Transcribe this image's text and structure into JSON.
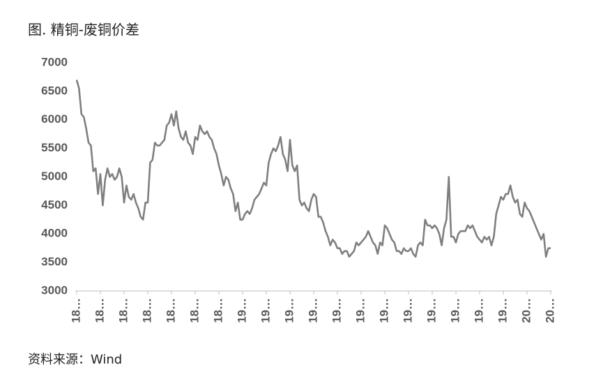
{
  "chart_data": {
    "type": "line",
    "title": "图. 精铜-废铜价差",
    "source": "资料来源：Wind",
    "color": "#7f7f7f",
    "categories": [
      "18…",
      null,
      null,
      null,
      null,
      null,
      null,
      null,
      null,
      null,
      "18…",
      null,
      null,
      null,
      null,
      null,
      null,
      null,
      null,
      null,
      "18…",
      null,
      null,
      null,
      null,
      null,
      null,
      null,
      null,
      null,
      "18…",
      null,
      null,
      null,
      null,
      null,
      null,
      null,
      null,
      null,
      "18…",
      null,
      null,
      null,
      null,
      null,
      null,
      null,
      null,
      null,
      "18…",
      null,
      null,
      null,
      null,
      null,
      null,
      null,
      null,
      null,
      "18…",
      null,
      null,
      null,
      null,
      null,
      null,
      null,
      null,
      null,
      "19…",
      null,
      null,
      null,
      null,
      null,
      null,
      null,
      null,
      null,
      "19…",
      null,
      null,
      null,
      null,
      null,
      null,
      null,
      null,
      null,
      "19…",
      null,
      null,
      null,
      null,
      null,
      null,
      null,
      null,
      null,
      "19…",
      null,
      null,
      null,
      null,
      null,
      null,
      null,
      null,
      null,
      "19…",
      null,
      null,
      null,
      null,
      null,
      null,
      null,
      null,
      null,
      "19…",
      null,
      null,
      null,
      null,
      null,
      null,
      null,
      null,
      null,
      "19…",
      null,
      null,
      null,
      null,
      null,
      null,
      null,
      null,
      null,
      "19…",
      null,
      null,
      null,
      null,
      null,
      null,
      null,
      null,
      null,
      "19…",
      null,
      null,
      null,
      null,
      null,
      null,
      null,
      null,
      null,
      "19…",
      null,
      null,
      null,
      null,
      null,
      null,
      null,
      null,
      null,
      "19…",
      null,
      null,
      null,
      null,
      null,
      null,
      null,
      null,
      null,
      "19…",
      null,
      null,
      null,
      null,
      null,
      null,
      null,
      null,
      null,
      "20…",
      null,
      null,
      null,
      null,
      null,
      null,
      null,
      null,
      null,
      "20…"
    ],
    "values": [
      6700,
      6550,
      6100,
      6050,
      5850,
      5600,
      5550,
      5100,
      5150,
      4700,
      5050,
      4500,
      4950,
      5150,
      5000,
      5050,
      4950,
      5000,
      5150,
      5000,
      4550,
      4850,
      4650,
      4600,
      4700,
      4550,
      4450,
      4300,
      4250,
      4550,
      4550,
      5250,
      5300,
      5600,
      5550,
      5550,
      5600,
      5650,
      5900,
      5950,
      6100,
      5900,
      6150,
      5850,
      5700,
      5650,
      5800,
      5600,
      5550,
      5400,
      5700,
      5650,
      5900,
      5800,
      5750,
      5800,
      5700,
      5650,
      5500,
      5400,
      5200,
      5050,
      4850,
      5000,
      4950,
      4800,
      4700,
      4400,
      4550,
      4250,
      4250,
      4350,
      4400,
      4350,
      4450,
      4600,
      4650,
      4700,
      4800,
      4900,
      4850,
      5250,
      5400,
      5500,
      5450,
      5550,
      5700,
      5400,
      5300,
      5100,
      5650,
      5200,
      5100,
      5200,
      4600,
      4500,
      4550,
      4450,
      4400,
      4600,
      4700,
      4650,
      4300,
      4300,
      4200,
      4050,
      3950,
      3800,
      3900,
      3850,
      3750,
      3750,
      3650,
      3700,
      3700,
      3600,
      3650,
      3700,
      3850,
      3800,
      3850,
      3900,
      3950,
      4050,
      3950,
      3850,
      3800,
      3650,
      3850,
      3800,
      4150,
      4100,
      4000,
      3900,
      3850,
      3700,
      3700,
      3650,
      3750,
      3700,
      3700,
      3750,
      3650,
      3600,
      3800,
      3850,
      3800,
      4250,
      4150,
      4150,
      4100,
      4150,
      4100,
      4000,
      3800,
      4100,
      4250,
      5000,
      3950,
      3950,
      3850,
      4000,
      4050,
      4050,
      4050,
      4150,
      4100,
      4150,
      4050,
      3950,
      3900,
      3850,
      3950,
      3900,
      3950,
      3800,
      3950,
      4350,
      4500,
      4650,
      4600,
      4700,
      4700,
      4850,
      4650,
      4550,
      4600,
      4350,
      4300,
      4550,
      4450,
      4400,
      4300,
      4200,
      4100,
      4000,
      3900,
      4000,
      3600,
      3750,
      3750
    ],
    "ylim": [
      3000,
      7000
    ],
    "yticks": [
      3000,
      3500,
      4000,
      4500,
      5000,
      5500,
      6000,
      6500,
      7000
    ],
    "grid": false
  }
}
